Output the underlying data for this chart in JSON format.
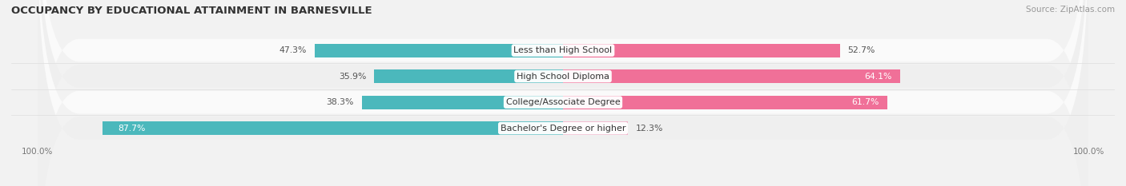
{
  "title": "OCCUPANCY BY EDUCATIONAL ATTAINMENT IN BARNESVILLE",
  "source": "Source: ZipAtlas.com",
  "categories": [
    "Less than High School",
    "High School Diploma",
    "College/Associate Degree",
    "Bachelor's Degree or higher"
  ],
  "owner_pct": [
    47.3,
    35.9,
    38.3,
    87.7
  ],
  "renter_pct": [
    52.7,
    64.1,
    61.7,
    12.3
  ],
  "owner_color": "#4bb8bc",
  "renter_color_full": "#f07098",
  "renter_color_partial": "#f0b0c8",
  "bg_color": "#f2f2f2",
  "row_bg_light": "#fafafa",
  "row_bg_dark": "#efefef",
  "bar_height": 0.52,
  "title_fontsize": 9.5,
  "label_fontsize": 8,
  "pct_fontsize": 7.8,
  "tick_fontsize": 7.5,
  "legend_fontsize": 8,
  "source_fontsize": 7.5
}
